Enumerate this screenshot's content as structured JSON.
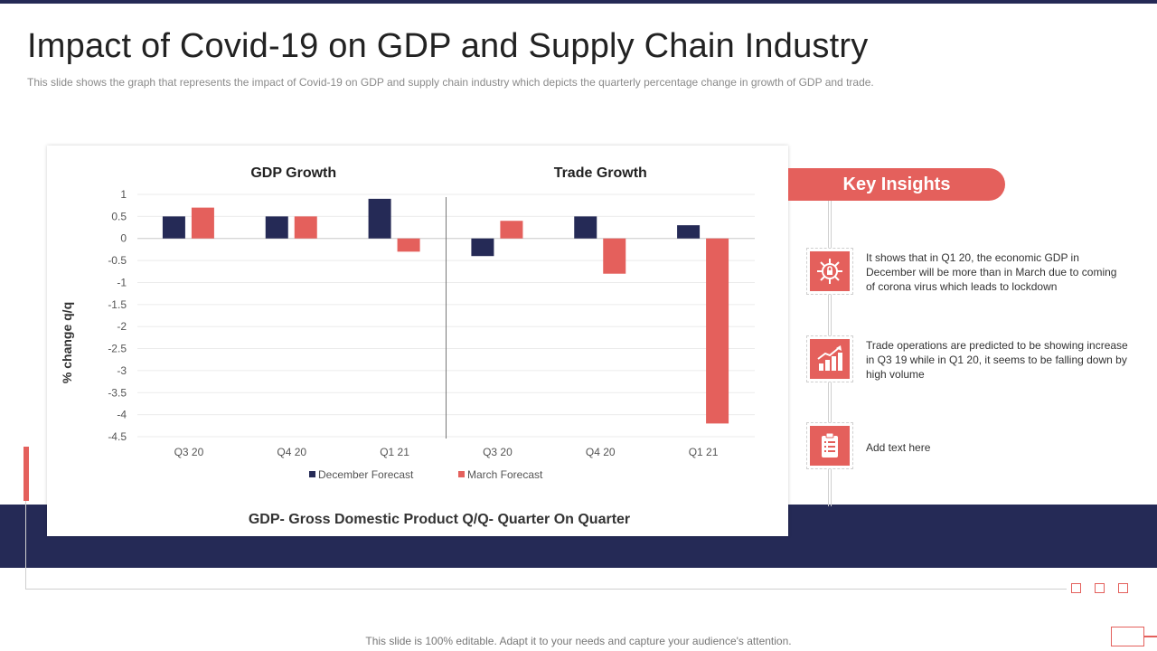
{
  "title": "Impact of Covid-19 on GDP and Supply Chain Industry",
  "subtitle": "This slide shows the graph that represents the impact of Covid-19  on GDP and supply chain industry which depicts the quarterly percentage change in growth of GDP and trade.",
  "footer": "This slide is 100% editable. Adapt it to your needs and capture your audience's attention.",
  "key_insights": {
    "header": "Key Insights",
    "items": [
      {
        "icon": "virus-icon",
        "text": "It shows that in Q1 20, the economic GDP in December will be more than in March due to coming of corona virus which leads to lockdown"
      },
      {
        "icon": "growth-chart-icon",
        "text": "Trade operations are predicted to be showing increase in Q3 19 while in Q1 20, it seems to be falling down by high volume"
      },
      {
        "icon": "clipboard-icon",
        "text": "Add text here"
      }
    ]
  },
  "colors": {
    "navy": "#252a56",
    "red": "#e4605c"
  },
  "chart_data": {
    "type": "bar",
    "panels": [
      {
        "title": "GDP Growth",
        "categories": [
          "Q3 20",
          "Q4 20",
          "Q1 21"
        ]
      },
      {
        "title": "Trade Growth",
        "categories": [
          "Q3 20",
          "Q4 20",
          "Q1 21"
        ]
      }
    ],
    "categories": [
      "Q3 20",
      "Q4 20",
      "Q1 21",
      "Q3 20",
      "Q4 20",
      "Q1 21"
    ],
    "series": [
      {
        "name": "December Forecast",
        "color": "#252a56",
        "values": [
          0.5,
          0.5,
          0.9,
          -0.4,
          0.5,
          0.3
        ]
      },
      {
        "name": "March Forecast",
        "color": "#e4605c",
        "values": [
          0.7,
          0.5,
          -0.3,
          0.4,
          -0.8,
          -4.2
        ]
      }
    ],
    "ylabel": "% change q/q",
    "ylim": [
      -4.5,
      1
    ],
    "yticks": [
      1,
      0.5,
      0,
      -0.5,
      -1,
      -1.5,
      -2,
      -2.5,
      -3,
      -3.5,
      -4,
      -4.5
    ],
    "caption": "GDP- Gross Domestic Product Q/Q- Quarter On Quarter",
    "legend": "bottom",
    "grid": true
  }
}
